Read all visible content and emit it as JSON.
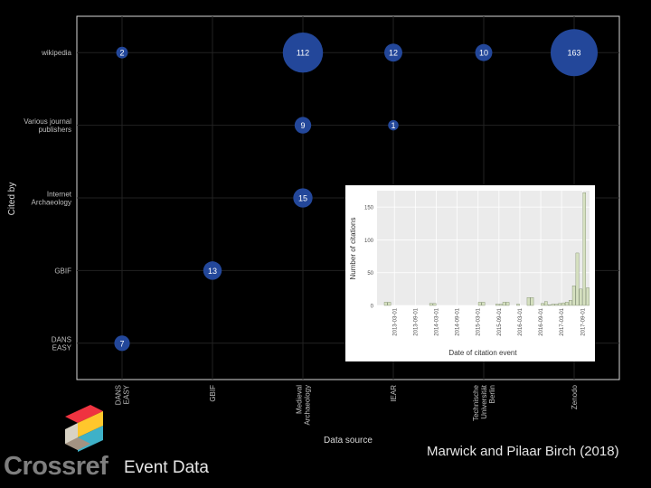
{
  "bubble_chart": {
    "x_axis_title": "Data source",
    "y_axis_title": "Cited by",
    "x_categories": [
      "DANS EASY",
      "GBIF",
      "Medieval Archaeology",
      "IEAR",
      "Technische Universität Berlin",
      "Zenodo"
    ],
    "y_categories": [
      "wikipedia",
      "Various journal publishers",
      "Internet Archaeology",
      "GBIF",
      "DANS EASY"
    ],
    "points": [
      {
        "x": "DANS EASY",
        "y": "wikipedia",
        "value": 2
      },
      {
        "x": "Medieval Archaeology",
        "y": "wikipedia",
        "value": 112
      },
      {
        "x": "IEAR",
        "y": "wikipedia",
        "value": 12
      },
      {
        "x": "Technische Universität Berlin",
        "y": "wikipedia",
        "value": 10
      },
      {
        "x": "Zenodo",
        "y": "wikipedia",
        "value": 163
      },
      {
        "x": "Medieval Archaeology",
        "y": "Various journal publishers",
        "value": 9
      },
      {
        "x": "IEAR",
        "y": "Various journal publishers",
        "value": 1
      },
      {
        "x": "Medieval Archaeology",
        "y": "Internet Archaeology",
        "value": 15
      },
      {
        "x": "GBIF",
        "y": "GBIF",
        "value": 13
      },
      {
        "x": "DANS EASY",
        "y": "DANS EASY",
        "value": 7
      }
    ],
    "colors": {
      "bubble": "#23479a",
      "bubble_text": "#ffffff",
      "panel_border": "#d9d9d9",
      "grid": "#222222",
      "text": "#bfbfbf"
    }
  },
  "chart_data": {
    "type": "bar",
    "xlabel": "Date of citation event",
    "ylabel": "Number of citations",
    "ylim": [
      0,
      175
    ],
    "yticks": [
      0,
      50,
      100,
      150
    ],
    "xtick_labels": [
      "2013-03-01",
      "2013-09-01",
      "2014-03-01",
      "2014-09-01",
      "2015-03-01",
      "2015-09-01",
      "2016-03-01",
      "2016-09-01",
      "2017-03-01",
      "2017-09-01"
    ],
    "bars": [
      {
        "month": "2012-12",
        "value": 5
      },
      {
        "month": "2013-01",
        "value": 5
      },
      {
        "month": "2014-01",
        "value": 3
      },
      {
        "month": "2014-02",
        "value": 3
      },
      {
        "month": "2015-03",
        "value": 5
      },
      {
        "month": "2015-04",
        "value": 5
      },
      {
        "month": "2015-08",
        "value": 2
      },
      {
        "month": "2015-09",
        "value": 2
      },
      {
        "month": "2015-10",
        "value": 5
      },
      {
        "month": "2015-11",
        "value": 5
      },
      {
        "month": "2016-02",
        "value": 2
      },
      {
        "month": "2016-05",
        "value": 12
      },
      {
        "month": "2016-06",
        "value": 12
      },
      {
        "month": "2016-09",
        "value": 3
      },
      {
        "month": "2016-10",
        "value": 6
      },
      {
        "month": "2016-11",
        "value": 1
      },
      {
        "month": "2016-12",
        "value": 2
      },
      {
        "month": "2017-01",
        "value": 2
      },
      {
        "month": "2017-02",
        "value": 3
      },
      {
        "month": "2017-03",
        "value": 4
      },
      {
        "month": "2017-04",
        "value": 5
      },
      {
        "month": "2017-05",
        "value": 8
      },
      {
        "month": "2017-06",
        "value": 30
      },
      {
        "month": "2017-07",
        "value": 80
      },
      {
        "month": "2017-08",
        "value": 25
      },
      {
        "month": "2017-09",
        "value": 172
      },
      {
        "month": "2017-10",
        "value": 27
      }
    ],
    "colors": {
      "panel": "#ebebeb",
      "grid": "#ffffff",
      "bar": "#d5e0c0",
      "bar_stroke": "#5a6a48",
      "text": "#4d4d4d"
    }
  },
  "footer": {
    "logo_text": "Crossref",
    "logo_subtext": "Event Data",
    "citation": "Marwick and Pilaar Birch (2018)"
  },
  "logo_colors": [
    "#ef3340",
    "#ffc72c",
    "#3eb1c8",
    "#d8d2c4",
    "#a39382"
  ]
}
